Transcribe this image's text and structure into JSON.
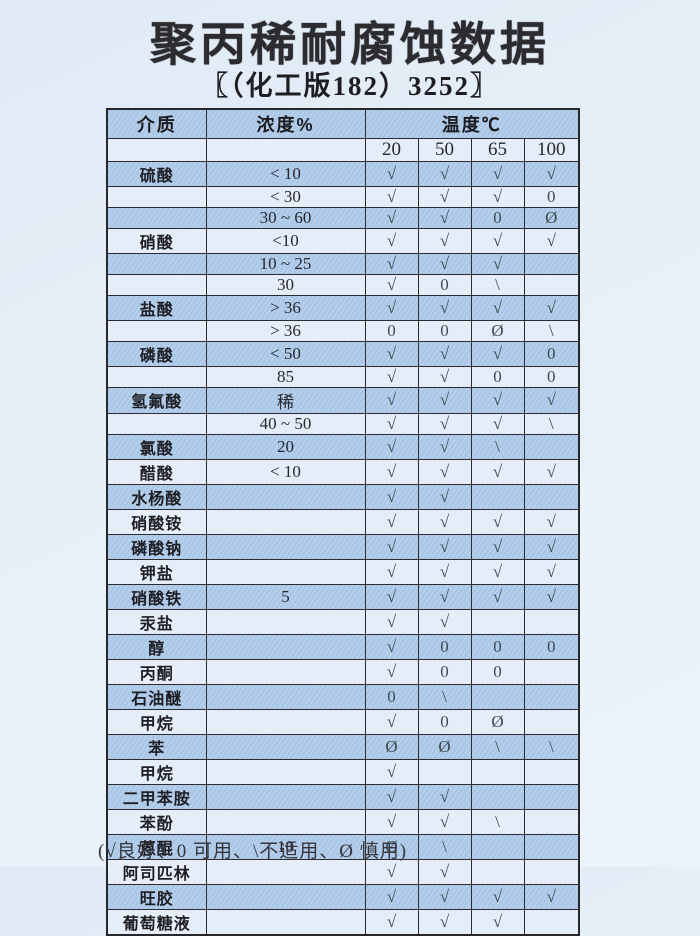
{
  "page": {
    "title": "聚丙稀耐腐蚀数据",
    "subtitle": "〖（化工版182）3252〗",
    "legend": "(√良好、0 可用、\\不适用、Ø 慎用)"
  },
  "table": {
    "headers": {
      "medium": "介质",
      "concentration": "浓度%",
      "temperature": "温度℃"
    },
    "temp_columns": [
      "20",
      "50",
      "65",
      "100"
    ],
    "rows": [
      {
        "medium": "硫酸",
        "conc": "< 10",
        "marks": [
          "√",
          "√",
          "√",
          "√"
        ]
      },
      {
        "medium": "",
        "conc": "< 30",
        "marks": [
          "√",
          "√",
          "√",
          "0"
        ]
      },
      {
        "medium": "",
        "conc": "30 ~ 60",
        "marks": [
          "√",
          "√",
          "0",
          "Ø"
        ]
      },
      {
        "medium": "硝酸",
        "conc": "<10",
        "marks": [
          "√",
          "√",
          "√",
          "√"
        ]
      },
      {
        "medium": "",
        "conc": "10 ~ 25",
        "marks": [
          "√",
          "√",
          "√",
          ""
        ]
      },
      {
        "medium": "",
        "conc": "30",
        "marks": [
          "√",
          "0",
          "\\",
          ""
        ]
      },
      {
        "medium": "盐酸",
        "conc": "> 36",
        "marks": [
          "√",
          "√",
          "√",
          "√"
        ]
      },
      {
        "medium": "",
        "conc": "> 36",
        "marks": [
          "0",
          "0",
          "Ø",
          "\\"
        ]
      },
      {
        "medium": "磷酸",
        "conc": "< 50",
        "marks": [
          "√",
          "√",
          "√",
          "0"
        ]
      },
      {
        "medium": "",
        "conc": "85",
        "marks": [
          "√",
          "√",
          "0",
          "0"
        ]
      },
      {
        "medium": "氢氟酸",
        "conc": "稀",
        "marks": [
          "√",
          "√",
          "√",
          "√"
        ]
      },
      {
        "medium": "",
        "conc": "40 ~ 50",
        "marks": [
          "√",
          "√",
          "√",
          "\\"
        ]
      },
      {
        "medium": "氯酸",
        "conc": "20",
        "marks": [
          "√",
          "√",
          "\\",
          ""
        ]
      },
      {
        "medium": "醋酸",
        "conc": "< 10",
        "marks": [
          "√",
          "√",
          "√",
          "√"
        ]
      },
      {
        "medium": "水杨酸",
        "conc": "",
        "marks": [
          "√",
          "√",
          "",
          ""
        ]
      },
      {
        "medium": "硝酸铵",
        "conc": "",
        "marks": [
          "√",
          "√",
          "√",
          "√"
        ]
      },
      {
        "medium": "磷酸钠",
        "conc": "",
        "marks": [
          "√",
          "√",
          "√",
          "√"
        ]
      },
      {
        "medium": "钾盐",
        "conc": "",
        "marks": [
          "√",
          "√",
          "√",
          "√"
        ]
      },
      {
        "medium": "硝酸铁",
        "conc": "5",
        "marks": [
          "√",
          "√",
          "√",
          "√"
        ]
      },
      {
        "medium": "汞盐",
        "conc": "",
        "marks": [
          "√",
          "√",
          "",
          ""
        ]
      },
      {
        "medium": "醇",
        "conc": "",
        "marks": [
          "√",
          "0",
          "0",
          "0"
        ]
      },
      {
        "medium": "丙酮",
        "conc": "",
        "marks": [
          "√",
          "0",
          "0",
          ""
        ]
      },
      {
        "medium": "石油醚",
        "conc": "",
        "marks": [
          "0",
          "\\",
          "",
          ""
        ]
      },
      {
        "medium": "甲烷",
        "conc": "",
        "marks": [
          "√",
          "0",
          "Ø",
          ""
        ]
      },
      {
        "medium": "苯",
        "conc": "",
        "marks": [
          "Ø",
          "Ø",
          "\\",
          "\\"
        ]
      },
      {
        "medium": "甲烷",
        "conc": "",
        "marks": [
          "√",
          "",
          "",
          ""
        ]
      },
      {
        "medium": "二甲苯胺",
        "conc": "",
        "marks": [
          "√",
          "√",
          "",
          ""
        ]
      },
      {
        "medium": "苯酚",
        "conc": "",
        "marks": [
          "√",
          "√",
          "\\",
          ""
        ]
      },
      {
        "medium": "蒽醌",
        "conc": "10",
        "marks": [
          "Ø",
          "\\",
          "",
          ""
        ]
      },
      {
        "medium": "阿司匹林",
        "conc": "",
        "marks": [
          "√",
          "√",
          "",
          ""
        ]
      },
      {
        "medium": "旺胶",
        "conc": "",
        "marks": [
          "√",
          "√",
          "√",
          "√"
        ]
      },
      {
        "medium": "葡萄糖液",
        "conc": "",
        "marks": [
          "√",
          "√",
          "√",
          ""
        ]
      }
    ]
  }
}
